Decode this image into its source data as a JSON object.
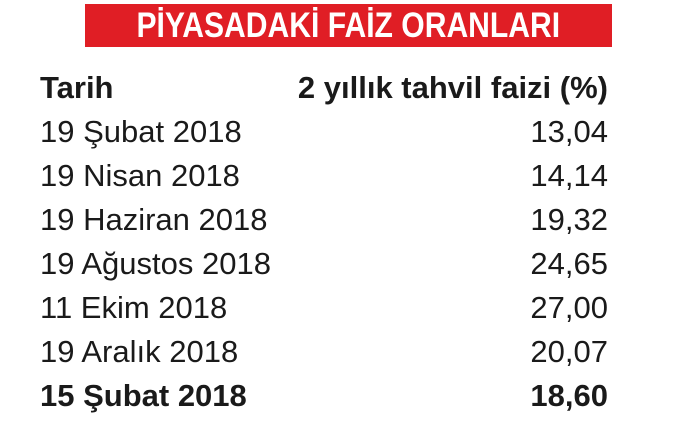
{
  "title": "PİYASADAKİ FAİZ ORANLARI",
  "colors": {
    "title_background": "#e01e25",
    "title_text": "#ffffff",
    "body_text": "#1a1a1a"
  },
  "chart_data": {
    "type": "table",
    "title": "PİYASADAKİ FAİZ ORANLARI",
    "columns": [
      "Tarih",
      "2 yıllık tahvil faizi (%)"
    ],
    "rows": [
      {
        "date": "19 Şubat 2018",
        "value": "13,04",
        "bold": false
      },
      {
        "date": "19 Nisan 2018",
        "value": "14,14",
        "bold": false
      },
      {
        "date": "19 Haziran 2018",
        "value": "19,32",
        "bold": false
      },
      {
        "date": "19 Ağustos 2018",
        "value": "24,65",
        "bold": false
      },
      {
        "date": "11 Ekim 2018",
        "value": "27,00",
        "bold": false
      },
      {
        "date": "19 Aralık 2018",
        "value": "20,07",
        "bold": false
      },
      {
        "date": "15 Şubat 2018",
        "value": "18,60",
        "bold": true
      }
    ]
  }
}
